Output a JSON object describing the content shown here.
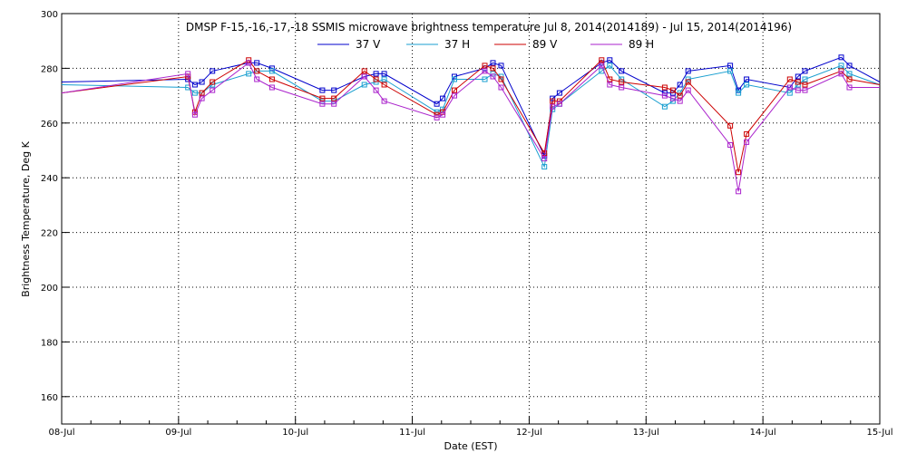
{
  "chart_data": {
    "type": "line",
    "title": "DMSP F-15,-16,-17,-18 SSMIS microwave brightness temperature Jul  8, 2014(2014189) - Jul 15, 2014(2014196)",
    "xlabel": "Date (EST)",
    "ylabel": "Brightness Temperature, Deg K",
    "xlim": [
      0,
      7
    ],
    "ylim": [
      150,
      300
    ],
    "yticks": [
      160,
      180,
      200,
      220,
      240,
      260,
      280,
      300
    ],
    "categories": [
      "08-Jul",
      "09-Jul",
      "10-Jul",
      "11-Jul",
      "12-Jul",
      "13-Jul",
      "14-Jul",
      "15-Jul"
    ],
    "grid": true,
    "legend_position": "top-center",
    "series": [
      {
        "name": "37 V",
        "color": "#0000cc",
        "x": [
          0.0,
          1.08,
          1.14,
          1.2,
          1.29,
          1.6,
          1.67,
          1.8,
          2.23,
          2.33,
          2.59,
          2.69,
          2.76,
          3.21,
          3.26,
          3.36,
          3.62,
          3.69,
          3.76,
          4.13,
          4.2,
          4.26,
          4.62,
          4.69,
          4.79,
          5.16,
          5.23,
          5.29,
          5.36,
          5.72,
          5.79,
          5.86,
          6.23,
          6.3,
          6.36,
          6.67,
          6.74,
          7.0
        ],
        "values": [
          275,
          276,
          274,
          275,
          279,
          282,
          282,
          280,
          272,
          272,
          277,
          278,
          278,
          267,
          269,
          277,
          280,
          282,
          281,
          248,
          269,
          271,
          282,
          283,
          279,
          271,
          271,
          274,
          279,
          281,
          272,
          276,
          273,
          277,
          279,
          284,
          281,
          275
        ]
      },
      {
        "name": "37 H",
        "color": "#1a9fd0",
        "x": [
          0.0,
          1.08,
          1.14,
          1.2,
          1.29,
          1.6,
          1.67,
          1.8,
          2.23,
          2.33,
          2.59,
          2.69,
          2.76,
          3.21,
          3.26,
          3.36,
          3.62,
          3.69,
          3.76,
          4.13,
          4.2,
          4.26,
          4.62,
          4.69,
          4.79,
          5.16,
          5.23,
          5.29,
          5.36,
          5.72,
          5.79,
          5.86,
          6.23,
          6.3,
          6.36,
          6.67,
          6.74,
          7.0
        ],
        "values": [
          274,
          273,
          271,
          271,
          274,
          278,
          279,
          279,
          268,
          268,
          274,
          275,
          276,
          264,
          265,
          276,
          276,
          278,
          277,
          244,
          265,
          267,
          279,
          281,
          276,
          266,
          268,
          271,
          276,
          279,
          271,
          274,
          271,
          274,
          276,
          281,
          278,
          274
        ]
      },
      {
        "name": "89 V",
        "color": "#cc0000",
        "x": [
          0.0,
          1.08,
          1.14,
          1.2,
          1.29,
          1.6,
          1.67,
          1.8,
          2.23,
          2.33,
          2.59,
          2.69,
          2.76,
          3.21,
          3.26,
          3.36,
          3.62,
          3.69,
          3.76,
          4.13,
          4.2,
          4.26,
          4.62,
          4.69,
          4.79,
          5.16,
          5.23,
          5.29,
          5.36,
          5.72,
          5.79,
          5.86,
          6.23,
          6.3,
          6.36,
          6.67,
          6.74,
          7.0
        ],
        "values": [
          271,
          277,
          264,
          271,
          275,
          283,
          279,
          276,
          269,
          269,
          279,
          276,
          274,
          263,
          264,
          272,
          281,
          280,
          276,
          249,
          268,
          268,
          283,
          276,
          275,
          273,
          272,
          270,
          275,
          259,
          242,
          256,
          276,
          275,
          274,
          279,
          276,
          274
        ]
      },
      {
        "name": "89 H",
        "color": "#aa22cc",
        "x": [
          0.0,
          1.08,
          1.14,
          1.2,
          1.29,
          1.6,
          1.67,
          1.8,
          2.23,
          2.33,
          2.59,
          2.69,
          2.76,
          3.21,
          3.26,
          3.36,
          3.62,
          3.69,
          3.76,
          4.13,
          4.2,
          4.26,
          4.62,
          4.69,
          4.79,
          5.16,
          5.23,
          5.29,
          5.36,
          5.72,
          5.79,
          5.86,
          6.23,
          6.3,
          6.36,
          6.67,
          6.74,
          7.0
        ],
        "values": [
          271,
          278,
          263,
          269,
          272,
          282,
          276,
          273,
          267,
          267,
          277,
          272,
          268,
          262,
          263,
          270,
          279,
          277,
          273,
          247,
          266,
          267,
          281,
          274,
          273,
          270,
          269,
          268,
          272,
          252,
          235,
          253,
          273,
          272,
          272,
          278,
          273,
          273
        ]
      }
    ]
  }
}
